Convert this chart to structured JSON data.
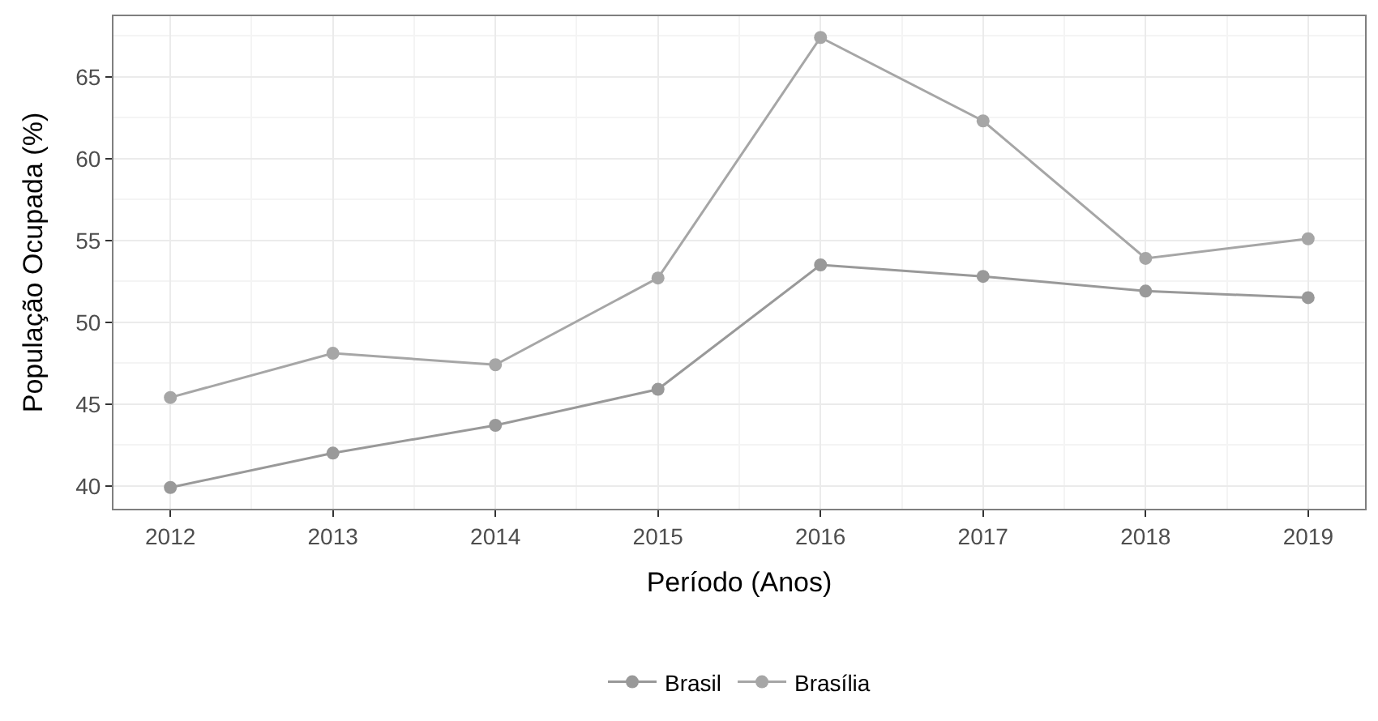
{
  "chart_data": {
    "type": "line",
    "xlabel": "Período (Anos)",
    "ylabel": "População Ocupada (%)",
    "x": [
      2012,
      2013,
      2014,
      2015,
      2016,
      2017,
      2018,
      2019
    ],
    "series": [
      {
        "name": "Brasil",
        "color": "#999999",
        "values": [
          39.9,
          42.0,
          43.7,
          45.9,
          53.5,
          52.8,
          51.9,
          51.5
        ]
      },
      {
        "name": "Brasília",
        "color": "#a6a6a6",
        "values": [
          45.4,
          48.1,
          47.4,
          52.7,
          67.4,
          62.3,
          53.9,
          55.1
        ]
      }
    ],
    "xlim": [
      2011.65,
      2019.35
    ],
    "xticks": [
      2012,
      2013,
      2014,
      2015,
      2016,
      2017,
      2018,
      2019
    ],
    "ylim": [
      38.6,
      68.7
    ],
    "yticks": [
      40,
      45,
      50,
      55,
      60,
      65
    ],
    "grid": true,
    "legend": "bottom",
    "marker": "circle",
    "line_style": "solid"
  }
}
